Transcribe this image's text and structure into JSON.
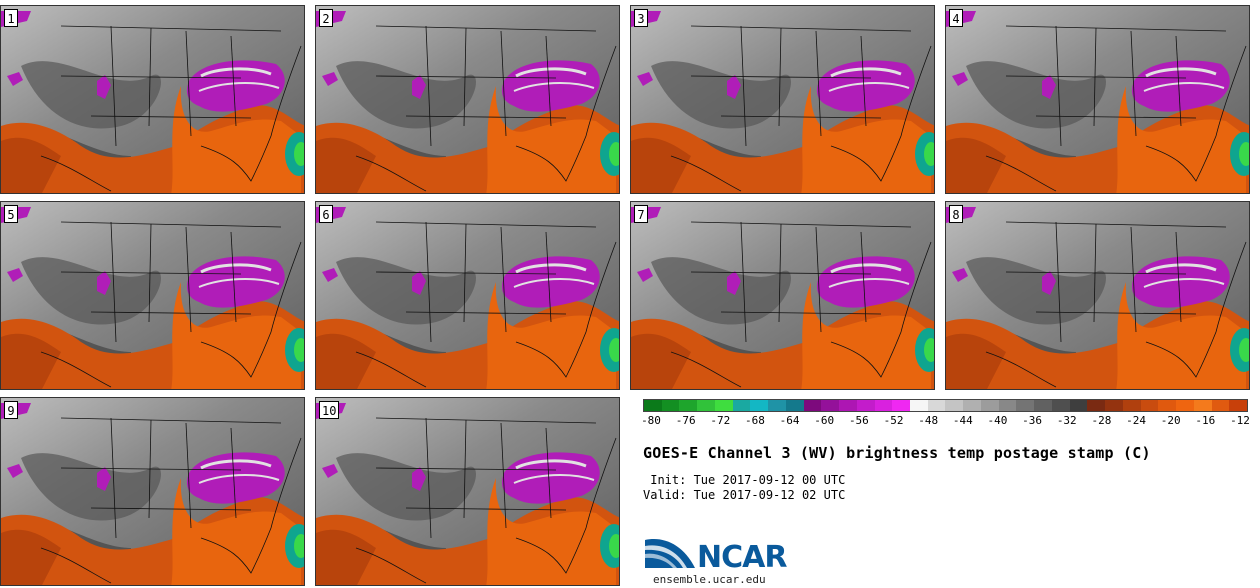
{
  "panels": [
    {
      "label": "1"
    },
    {
      "label": "2"
    },
    {
      "label": "3"
    },
    {
      "label": "4"
    },
    {
      "label": "5"
    },
    {
      "label": "6"
    },
    {
      "label": "7"
    },
    {
      "label": "8"
    },
    {
      "label": "9"
    },
    {
      "label": "10"
    }
  ],
  "colorbar": {
    "ticks": [
      "-80",
      "-76",
      "-72",
      "-68",
      "-64",
      "-60",
      "-56",
      "-52",
      "-48",
      "-44",
      "-40",
      "-36",
      "-32",
      "-28",
      "-24",
      "-20",
      "-16",
      "-12"
    ],
    "colors": [
      "#0b7a1a",
      "#138f22",
      "#1ea52c",
      "#31c23a",
      "#3fdd3f",
      "#1aa9a1",
      "#13b7c4",
      "#1f93a6",
      "#14798c",
      "#7d0a7d",
      "#94119a",
      "#ad16b3",
      "#c31ccb",
      "#d921df",
      "#ef28f2",
      "#f6f6f6",
      "#d8d8d8",
      "#c4c4c4",
      "#b0b0b0",
      "#9c9c9c",
      "#888888",
      "#747474",
      "#616161",
      "#4f4f4f",
      "#3e3e3e",
      "#7a2a12",
      "#94330f",
      "#b0400e",
      "#c94c0f",
      "#e0590e",
      "#ef6510",
      "#f47a1c",
      "#e05a10",
      "#c8400a"
    ]
  },
  "title": "GOES-E Channel 3 (WV) brightness temp postage stamp (C)",
  "init": " Init: Tue 2017-09-12 00 UTC",
  "valid": "Valid: Tue 2017-09-12 02 UTC",
  "logo": {
    "text": "NCAR",
    "url": "ensemble.ucar.edu"
  }
}
